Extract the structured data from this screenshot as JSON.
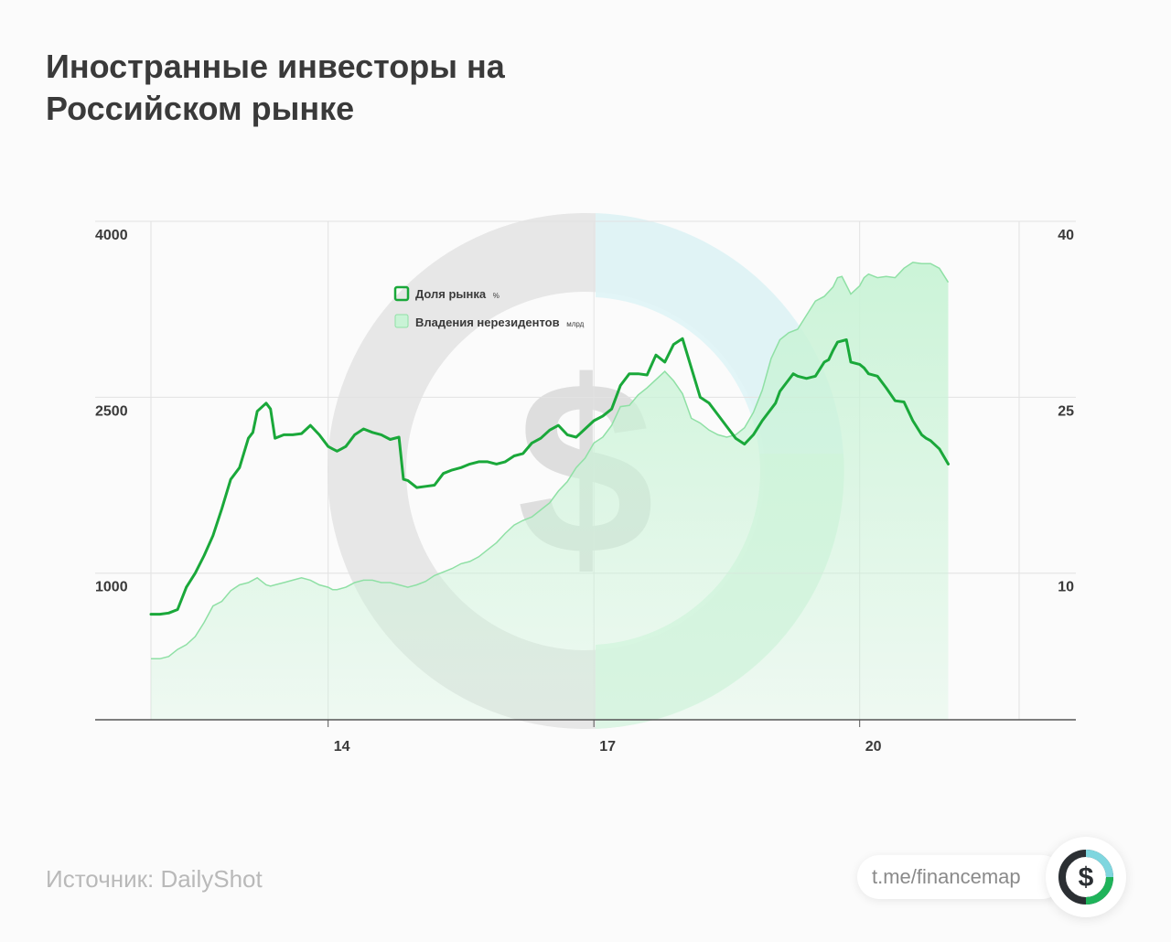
{
  "header": {
    "title_line1": "Иностранные инвесторы на",
    "title_line2": "Российском рынке"
  },
  "footer": {
    "source": "Источник: DailyShot",
    "brand_link": "t.me/financemap",
    "logo_symbol": "$"
  },
  "watermark": {
    "symbol": "$"
  },
  "colors": {
    "line": "#1aa83a",
    "area_fill": "#c9f3d6",
    "area_stroke": "#8fe0a5",
    "grid": "#e2e2e2",
    "axis": "#555555",
    "text": "#3a3a3a",
    "watermark_grey": "#e3e3e3",
    "watermark_teal": "#dff4f6",
    "watermark_green": "#dcf6e4"
  },
  "chart_data": {
    "type": "line",
    "x_tick_labels": [
      "14",
      "17",
      "20"
    ],
    "x_ticks": [
      14,
      17,
      20
    ],
    "xlim": [
      12.0,
      21.8
    ],
    "y_left_ticks": [
      "4000",
      "2500",
      "1000"
    ],
    "y_left_lim": [
      -250,
      4000
    ],
    "y_right_ticks": [
      "40",
      "25",
      "10"
    ],
    "y_right_lim": [
      -2.5,
      40
    ],
    "grid": true,
    "legend_position": "top-left",
    "series": [
      {
        "name": "Доля рынка",
        "unit": "%",
        "axis": "right",
        "style": "line",
        "x": [
          12.0,
          12.1,
          12.2,
          12.3,
          12.4,
          12.5,
          12.6,
          12.7,
          12.8,
          12.9,
          13.0,
          13.1,
          13.15,
          13.2,
          13.3,
          13.35,
          13.4,
          13.5,
          13.6,
          13.7,
          13.8,
          13.9,
          14.0,
          14.05,
          14.1,
          14.15,
          14.2,
          14.3,
          14.4,
          14.5,
          14.6,
          14.7,
          14.8,
          14.85,
          14.9,
          15.0,
          15.1,
          15.2,
          15.3,
          15.4,
          15.5,
          15.6,
          15.7,
          15.8,
          15.9,
          16.0,
          16.1,
          16.2,
          16.3,
          16.4,
          16.5,
          16.6,
          16.7,
          16.8,
          17.0,
          17.1,
          17.2,
          17.3,
          17.4,
          17.5,
          17.6,
          17.7,
          17.8,
          17.9,
          18.0,
          18.1,
          18.2,
          18.3,
          18.4,
          18.5,
          18.6,
          18.7,
          18.8,
          18.9,
          19.0,
          19.05,
          19.1,
          19.2,
          19.25,
          19.3,
          19.4,
          19.5,
          19.6,
          19.65,
          19.7,
          19.75,
          19.85,
          19.9,
          20.0,
          20.05,
          20.1,
          20.2,
          20.3,
          20.4,
          20.5,
          20.6,
          20.7,
          20.75,
          20.8,
          20.9,
          21.0
        ],
        "y": [
          6.5,
          6.5,
          6.6,
          6.9,
          8.8,
          10.0,
          11.5,
          13.2,
          15.5,
          18.0,
          19.0,
          21.5,
          22.0,
          23.8,
          24.5,
          24.0,
          21.5,
          21.8,
          21.8,
          21.9,
          22.6,
          21.8,
          20.8,
          20.6,
          20.4,
          20.6,
          20.8,
          21.8,
          22.3,
          22.0,
          21.8,
          21.4,
          21.6,
          18.0,
          17.9,
          17.3,
          17.4,
          17.5,
          18.5,
          18.8,
          19.0,
          19.3,
          19.5,
          19.5,
          19.3,
          19.5,
          20.0,
          20.2,
          21.1,
          21.5,
          22.2,
          22.6,
          21.8,
          21.6,
          23.0,
          23.4,
          24.0,
          26.0,
          27.0,
          27.0,
          26.9,
          28.6,
          28.0,
          29.5,
          30.0,
          27.5,
          25.0,
          24.5,
          23.5,
          22.5,
          21.5,
          21.0,
          21.8,
          23.0,
          24.0,
          24.5,
          25.5,
          26.5,
          27.0,
          26.8,
          26.6,
          26.8,
          28.0,
          28.2,
          29.0,
          29.7,
          29.9,
          28.0,
          27.8,
          27.5,
          27.0,
          26.8,
          25.8,
          24.7,
          24.6,
          23.0,
          21.8,
          21.5,
          21.3,
          20.6,
          19.3
        ]
      },
      {
        "name": "Владения нерезидентов",
        "unit": "млрд",
        "axis": "left",
        "style": "area",
        "x": [
          12.0,
          12.1,
          12.2,
          12.3,
          12.4,
          12.5,
          12.6,
          12.7,
          12.8,
          12.9,
          13.0,
          13.1,
          13.2,
          13.3,
          13.35,
          13.4,
          13.5,
          13.6,
          13.7,
          13.8,
          13.9,
          14.0,
          14.05,
          14.1,
          14.2,
          14.3,
          14.4,
          14.5,
          14.6,
          14.7,
          14.8,
          14.9,
          15.0,
          15.1,
          15.2,
          15.3,
          15.4,
          15.5,
          15.6,
          15.7,
          15.8,
          15.9,
          16.0,
          16.1,
          16.2,
          16.3,
          16.4,
          16.5,
          16.6,
          16.7,
          16.8,
          16.9,
          17.0,
          17.1,
          17.2,
          17.3,
          17.4,
          17.5,
          17.6,
          17.7,
          17.8,
          17.9,
          18.0,
          18.1,
          18.2,
          18.3,
          18.4,
          18.5,
          18.6,
          18.7,
          18.8,
          18.9,
          19.0,
          19.1,
          19.2,
          19.3,
          19.4,
          19.5,
          19.6,
          19.7,
          19.75,
          19.8,
          19.9,
          20.0,
          20.05,
          20.1,
          20.2,
          20.3,
          20.4,
          20.5,
          20.6,
          20.7,
          20.8,
          20.9,
          21.0
        ],
        "y": [
          270,
          270,
          290,
          350,
          390,
          460,
          580,
          720,
          760,
          850,
          900,
          920,
          960,
          900,
          890,
          900,
          920,
          940,
          960,
          940,
          900,
          880,
          860,
          860,
          880,
          920,
          940,
          940,
          920,
          920,
          900,
          880,
          900,
          930,
          980,
          1010,
          1040,
          1080,
          1100,
          1140,
          1200,
          1260,
          1340,
          1410,
          1450,
          1480,
          1540,
          1600,
          1700,
          1780,
          1900,
          1980,
          2110,
          2160,
          2260,
          2420,
          2430,
          2520,
          2580,
          2650,
          2720,
          2640,
          2530,
          2320,
          2280,
          2220,
          2180,
          2160,
          2180,
          2240,
          2370,
          2560,
          2830,
          2990,
          3050,
          3080,
          3200,
          3320,
          3360,
          3440,
          3520,
          3530,
          3380,
          3450,
          3520,
          3550,
          3520,
          3530,
          3520,
          3600,
          3650,
          3640,
          3640,
          3600,
          3480
        ]
      }
    ]
  }
}
